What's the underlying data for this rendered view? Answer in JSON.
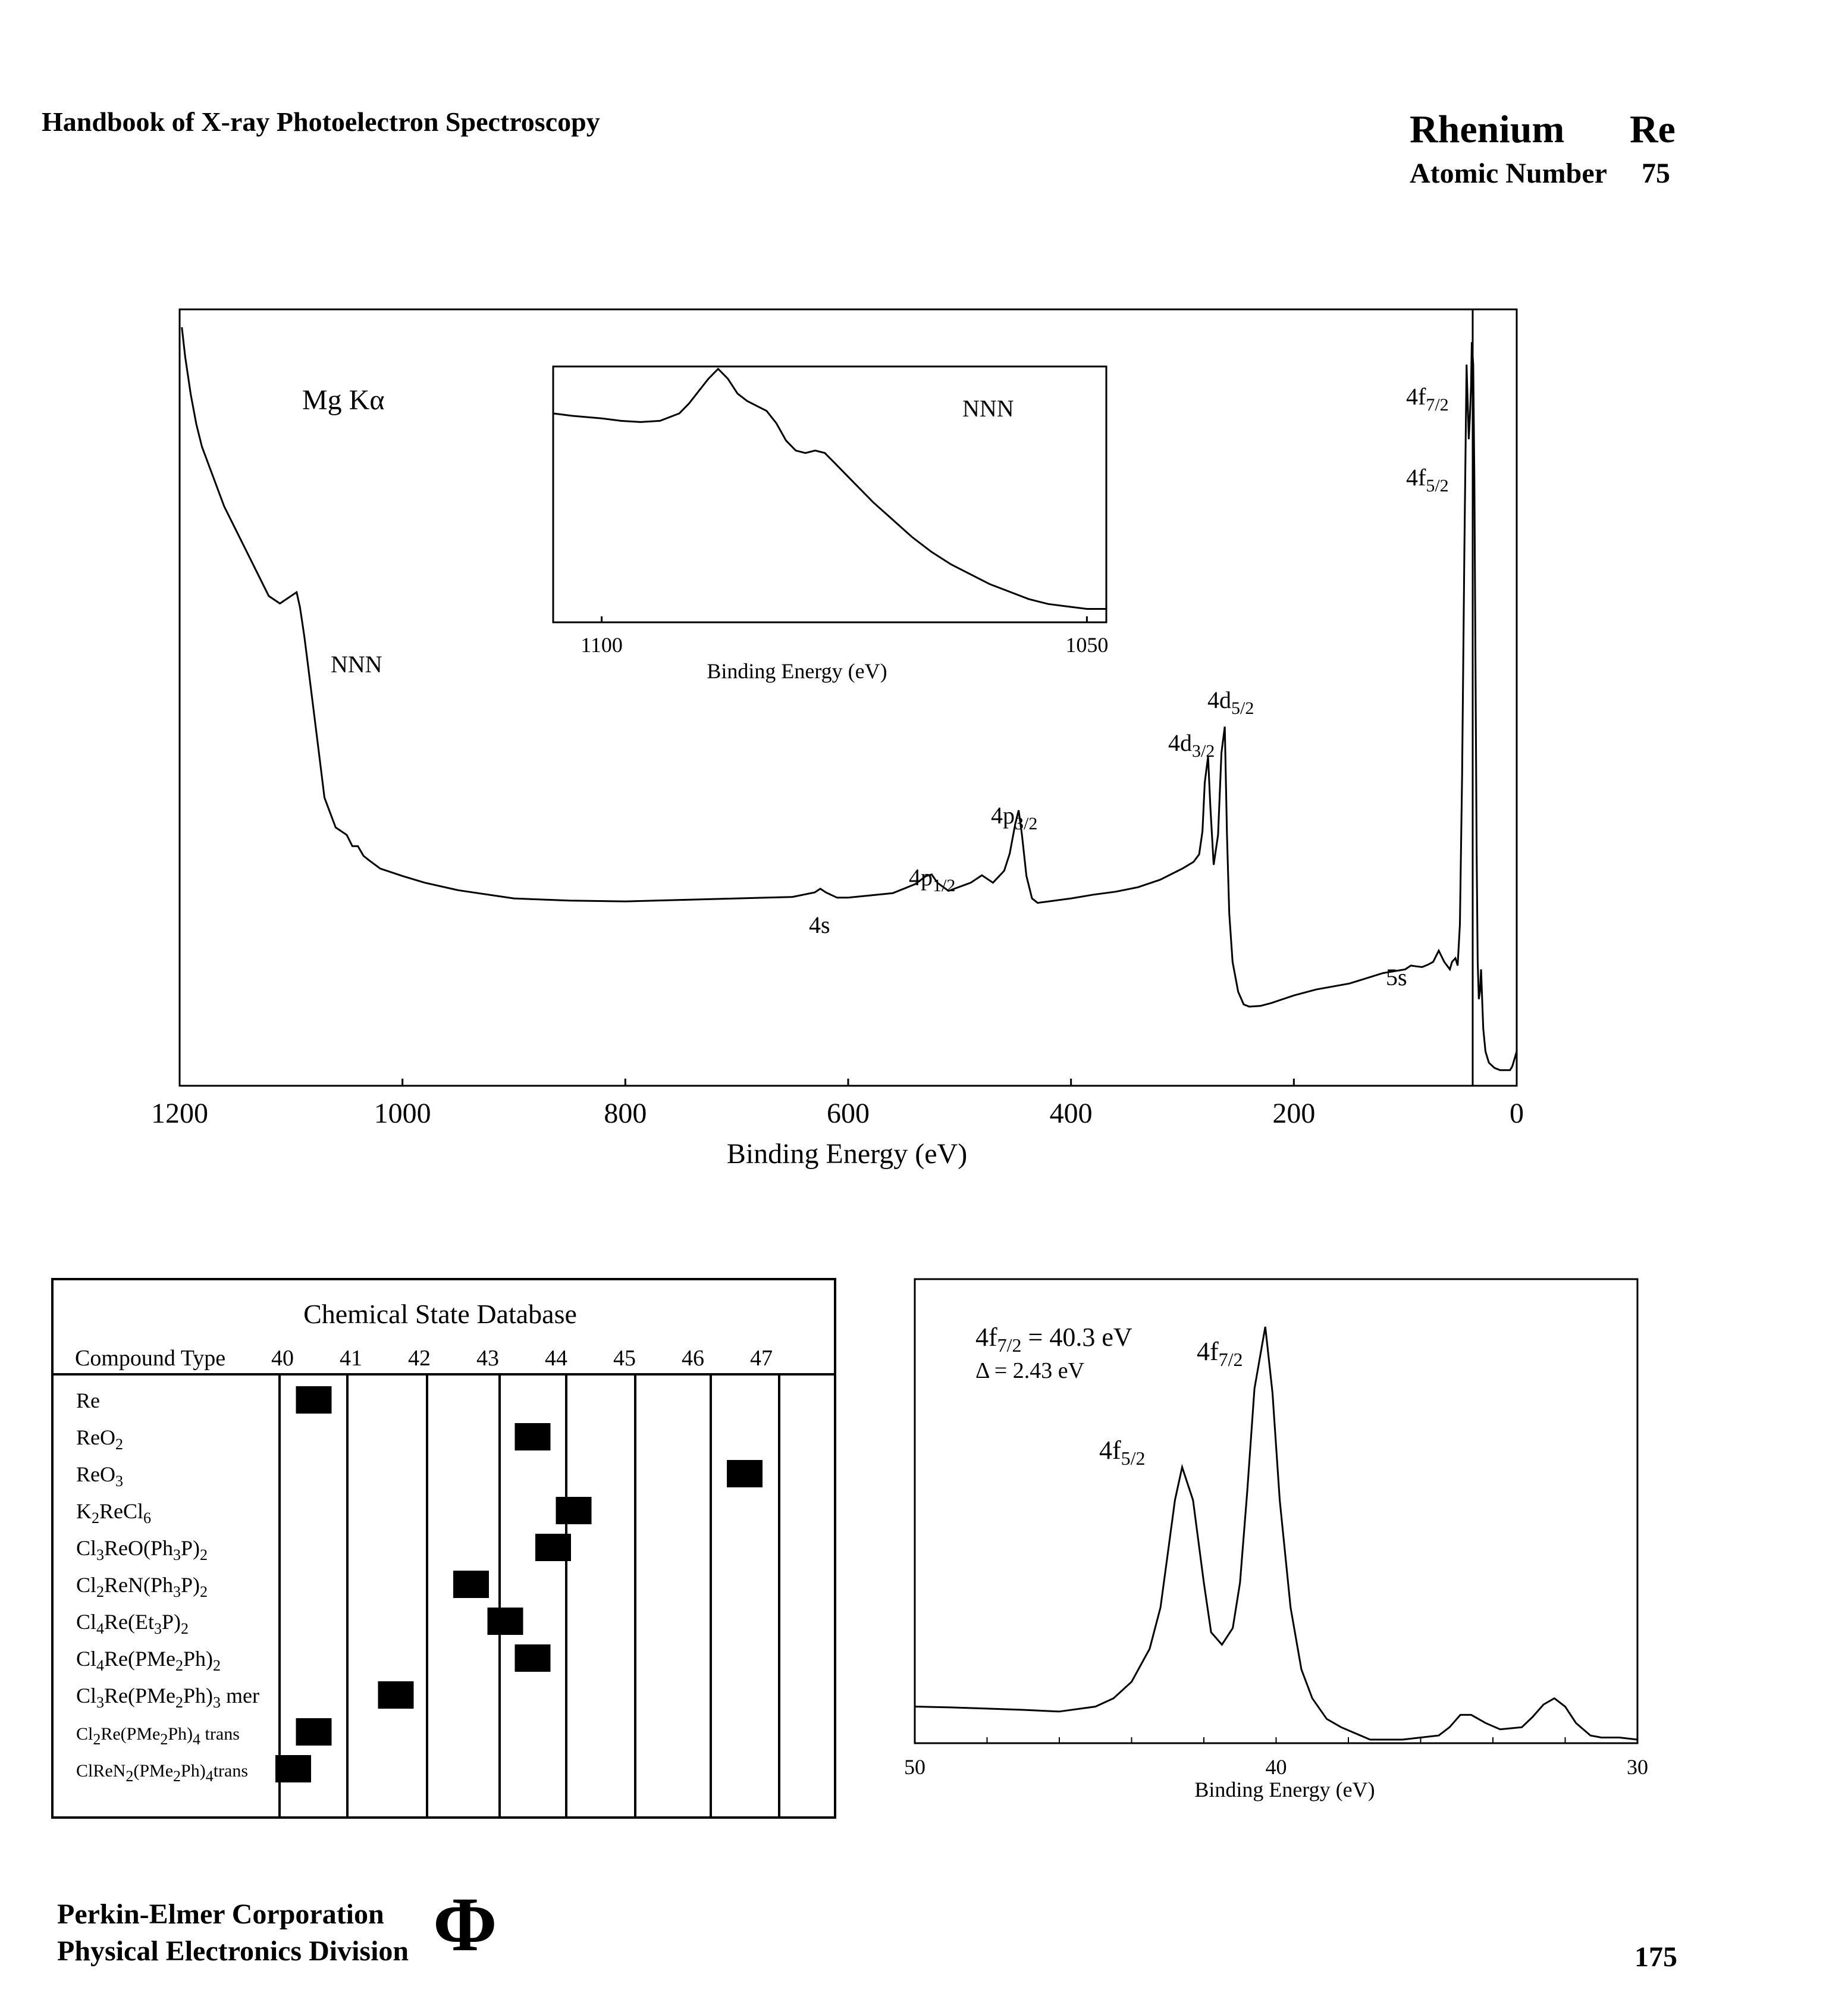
{
  "header": {
    "book_title": "Handbook of X-ray Photoelectron Spectroscopy",
    "element_name": "Rhenium",
    "element_symbol": "Re",
    "atomic_number_label": "Atomic Number",
    "atomic_number": "75"
  },
  "footer": {
    "company": "Perkin-Elmer Corporation",
    "division": "Physical Electronics Division",
    "logo_glyph": "Φ",
    "page_number": "175"
  },
  "chart_data": [
    {
      "type": "line",
      "id": "survey",
      "source_label": "Mg Kα",
      "xlabel": "Binding Energy (eV)",
      "xlim": [
        1200,
        0
      ],
      "x_reversed": true,
      "xticks": [
        1200,
        1000,
        800,
        600,
        400,
        200,
        0
      ],
      "series": [
        {
          "x": [
            1198,
            1195,
            1190,
            1185,
            1180,
            1170,
            1160,
            1150,
            1140,
            1130,
            1120,
            1110,
            1100,
            1095,
            1092,
            1090,
            1088,
            1085,
            1080,
            1075,
            1070,
            1060,
            1050,
            1045,
            1040,
            1035,
            1030,
            1020,
            1000,
            980,
            950,
            900,
            850,
            800,
            750,
            700,
            650,
            630,
            625,
            620,
            610,
            600,
            560,
            540,
            530,
            525,
            520,
            510,
            490,
            480,
            470,
            460,
            455,
            450,
            447,
            444,
            440,
            435,
            430,
            420,
            400,
            380,
            360,
            340,
            320,
            300,
            290,
            285,
            282,
            280,
            277,
            275,
            272,
            268,
            265,
            262,
            260,
            258,
            255,
            250,
            245,
            240,
            230,
            220,
            200,
            180,
            150,
            120,
            100,
            95,
            90,
            85,
            80,
            75,
            70,
            65,
            60,
            58,
            55,
            53,
            51,
            49,
            47,
            45,
            43,
            42,
            41,
            40.3,
            39,
            38,
            37,
            36,
            35,
            34,
            33,
            32,
            31,
            30,
            28,
            25,
            20,
            15,
            10,
            8,
            6,
            4,
            2,
            0
          ],
          "y": [
            100,
            96,
            91,
            87,
            84,
            80,
            76,
            73,
            70,
            67,
            64,
            63,
            64,
            64.5,
            62.5,
            60.5,
            58.5,
            55,
            49,
            43,
            37,
            33,
            32,
            30.5,
            30.5,
            29.2,
            28.6,
            27.5,
            26.5,
            25.6,
            24.6,
            23.5,
            23.2,
            23.1,
            23.3,
            23.5,
            23.7,
            24.3,
            24.8,
            24.3,
            23.6,
            23.6,
            24.2,
            25.4,
            26.5,
            26.7,
            25.6,
            24.5,
            25.6,
            26.6,
            25.6,
            27.2,
            29.5,
            33.5,
            35.3,
            32,
            26.5,
            23.5,
            22.9,
            23.1,
            23.5,
            24,
            24.4,
            25,
            26,
            27.5,
            28.4,
            29.4,
            32.5,
            39,
            42.5,
            36,
            28,
            32,
            43,
            46.5,
            32,
            21.5,
            15,
            11,
            9.3,
            9,
            9.1,
            9.5,
            10.5,
            11.3,
            12.1,
            13.5,
            14,
            14.5,
            14.4,
            14.3,
            14.6,
            15,
            16.5,
            15,
            14,
            15,
            15.5,
            14.5,
            20,
            40,
            70,
            95,
            85,
            88,
            92,
            98,
            95,
            80,
            55,
            30,
            15,
            10,
            11,
            14,
            10,
            6,
            3,
            1.5,
            0.8,
            0.5,
            0.5,
            0.5,
            0.5,
            1,
            2,
            3
          ]
        }
      ],
      "peak_labels": [
        "NNN",
        "4s",
        "4p1/2",
        "4p3/2",
        "4d3/2",
        "4d5/2",
        "5s",
        "4f7/2",
        "4f5/2"
      ]
    },
    {
      "type": "line",
      "id": "inset",
      "title": "NNN",
      "xlabel": "Binding Energy (eV)",
      "xlim": [
        1105,
        1048
      ],
      "xticks": [
        1100,
        1050
      ],
      "series": [
        {
          "x": [
            1105,
            1103,
            1100,
            1098,
            1096,
            1094,
            1092,
            1091,
            1090,
            1089,
            1088,
            1087,
            1086,
            1085,
            1084,
            1083,
            1082,
            1081,
            1080,
            1079,
            1078,
            1077,
            1076,
            1074,
            1072,
            1070,
            1068,
            1066,
            1064,
            1062,
            1060,
            1058,
            1056,
            1054,
            1052,
            1050,
            1048
          ],
          "y": [
            82,
            81,
            80,
            79,
            78.5,
            79,
            82,
            86,
            91,
            96,
            100,
            96,
            90,
            87,
            85,
            83,
            78,
            71,
            67,
            66,
            67,
            66,
            62,
            54,
            46,
            39,
            32,
            26,
            21,
            17,
            13,
            10,
            7,
            5,
            4,
            3,
            3
          ]
        }
      ]
    },
    {
      "type": "table",
      "id": "chemical-state-database",
      "title": "Chemical State Database",
      "column_header": "Compound Type",
      "axis_ticks": [
        40,
        41,
        42,
        43,
        44,
        45,
        46,
        47
      ],
      "rows": [
        {
          "compound": "Re",
          "be": 40.5
        },
        {
          "compound": "ReO2",
          "be": 43.7
        },
        {
          "compound": "ReO3",
          "be": 46.8
        },
        {
          "compound": "K2ReCl6",
          "be": 44.3
        },
        {
          "compound": "Cl3ReO(Ph3P)2",
          "be": 44.0
        },
        {
          "compound": "Cl2ReN(Ph3P)2",
          "be": 42.8
        },
        {
          "compound": "Cl4Re(Et3P)2",
          "be": 43.3
        },
        {
          "compound": "Cl4Re(PMe2Ph)2",
          "be": 43.7
        },
        {
          "compound": "Cl3Re(PMe2Ph)3 mer",
          "be": 41.7
        },
        {
          "compound": "Cl2Re(PMe2Ph)4 trans",
          "be": 40.5
        },
        {
          "compound": "ClReN2(PMe2Ph)4trans",
          "be": 40.2
        }
      ]
    },
    {
      "type": "line",
      "id": "4f-detail",
      "xlabel": "Binding Energy (eV)",
      "xlim": [
        50,
        30
      ],
      "xticks": [
        50,
        40,
        30
      ],
      "annotation_main": "4f7/2 = 40.3 eV",
      "annotation_delta": "Δ = 2.43 eV",
      "peak_labels": [
        "4f7/2",
        "4f5/2"
      ],
      "series": [
        {
          "x": [
            50,
            49,
            48,
            47,
            46,
            45,
            44.5,
            44,
            43.5,
            43.2,
            43,
            42.8,
            42.6,
            42.3,
            42,
            41.8,
            41.5,
            41.2,
            41,
            40.8,
            40.6,
            40.3,
            40.1,
            39.9,
            39.6,
            39.3,
            39,
            38.6,
            38.2,
            37.8,
            37.4,
            37,
            36.5,
            36,
            35.5,
            35.2,
            34.9,
            34.6,
            34.2,
            33.8,
            33.2,
            32.9,
            32.6,
            32.3,
            32,
            31.7,
            31.3,
            31,
            30.5,
            30
          ],
          "y": [
            8,
            7.8,
            7.5,
            7.2,
            6.8,
            8,
            10,
            14,
            22,
            32,
            45,
            58,
            66,
            58,
            38,
            26,
            23,
            27,
            38,
            60,
            85,
            100,
            84,
            58,
            32,
            17,
            10,
            5,
            3,
            1.5,
            0,
            0,
            0,
            0.5,
            1,
            3,
            6,
            6,
            4,
            2.5,
            3,
            5.5,
            8.5,
            10,
            8,
            4,
            1,
            0.5,
            0.5,
            0
          ]
        }
      ]
    }
  ]
}
